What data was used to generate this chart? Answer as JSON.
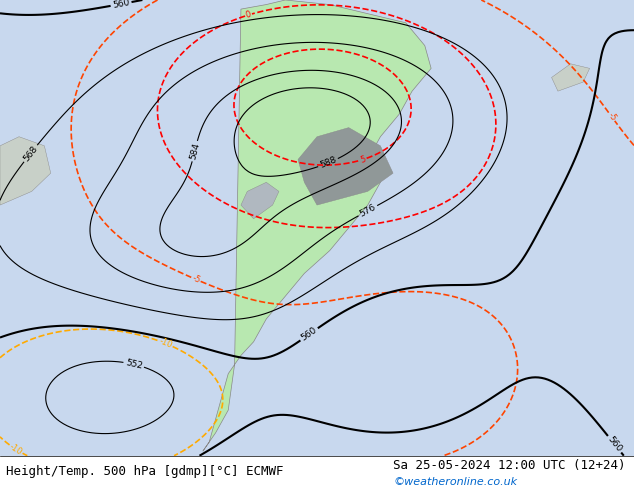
{
  "title_left": "Height/Temp. 500 hPa [gdmp][°C] ECMWF",
  "title_right": "Sa 25-05-2024 12:00 UTC (12+24)",
  "watermark": "©weatheronline.co.uk",
  "bg_color": "#d0d8e8",
  "land_color": "#b8e8b0",
  "ocean_color": "#c8d8f0",
  "title_fontsize": 9,
  "watermark_color": "#0066cc",
  "figsize": [
    6.34,
    4.9
  ],
  "dpi": 100
}
